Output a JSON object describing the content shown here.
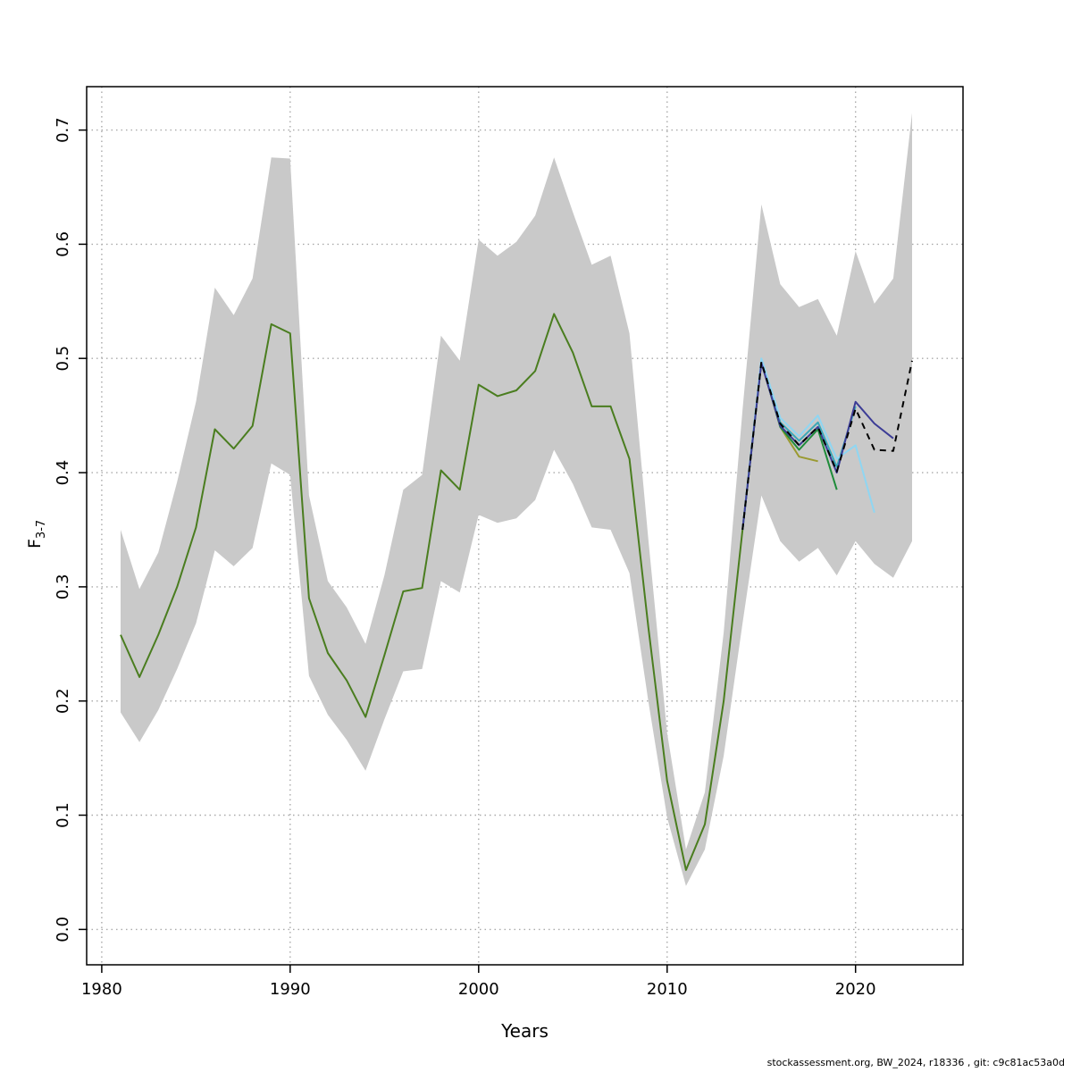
{
  "footer": {
    "text": "stockassessment.org, BW_2024, r18336 , git: c9c81ac53a0d"
  },
  "chart_data": {
    "type": "line",
    "title": "",
    "xlabel": "Years",
    "ylabel": {
      "main": "F",
      "sub": "3-7"
    },
    "grid": "dotted",
    "legend": "none",
    "xlim": [
      1979.2,
      2025.7
    ],
    "ylim": [
      -0.031,
      0.738
    ],
    "x_ticks": [
      1980,
      1990,
      2000,
      2010,
      2020
    ],
    "y_ticks": [
      "0.0",
      "0.1",
      "0.2",
      "0.3",
      "0.4",
      "0.5",
      "0.6",
      "0.7"
    ],
    "band": {
      "name": "confidence-band",
      "color": "#c9c9c9",
      "years": [
        1981,
        1982,
        1983,
        1984,
        1985,
        1986,
        1987,
        1988,
        1989,
        1990,
        1991,
        1992,
        1993,
        1994,
        1995,
        1996,
        1997,
        1998,
        1999,
        2000,
        2001,
        2002,
        2003,
        2004,
        2005,
        2006,
        2007,
        2008,
        2009,
        2010,
        2011,
        2012,
        2013,
        2014,
        2015,
        2016,
        2017,
        2018,
        2019,
        2020,
        2021,
        2022,
        2023
      ],
      "lower": [
        0.19,
        0.164,
        0.192,
        0.228,
        0.268,
        0.332,
        0.318,
        0.334,
        0.408,
        0.398,
        0.222,
        0.188,
        0.166,
        0.139,
        0.184,
        0.226,
        0.228,
        0.305,
        0.295,
        0.363,
        0.356,
        0.36,
        0.376,
        0.42,
        0.39,
        0.352,
        0.35,
        0.312,
        0.2,
        0.098,
        0.038,
        0.07,
        0.152,
        0.268,
        0.38,
        0.34,
        0.322,
        0.334,
        0.31,
        0.34,
        0.32,
        0.308,
        0.34
      ],
      "upper": [
        0.35,
        0.298,
        0.33,
        0.392,
        0.462,
        0.562,
        0.538,
        0.57,
        0.676,
        0.675,
        0.38,
        0.305,
        0.282,
        0.25,
        0.31,
        0.385,
        0.398,
        0.52,
        0.498,
        0.604,
        0.59,
        0.602,
        0.625,
        0.676,
        0.628,
        0.582,
        0.59,
        0.522,
        0.342,
        0.172,
        0.07,
        0.12,
        0.26,
        0.455,
        0.635,
        0.565,
        0.545,
        0.552,
        0.52,
        0.594,
        0.548,
        0.57,
        0.715
      ]
    },
    "base_series": {
      "name": "common-history",
      "color": "#4a7d1f",
      "dash": null,
      "years": [
        1981,
        1982,
        1983,
        1984,
        1985,
        1986,
        1987,
        1988,
        1989,
        1990,
        1991,
        1992,
        1993,
        1994,
        1995,
        1996,
        1997,
        1998,
        1999,
        2000,
        2001,
        2002,
        2003,
        2004,
        2005,
        2006,
        2007,
        2008,
        2009,
        2010,
        2011,
        2012,
        2013,
        2014,
        2015
      ],
      "values": [
        0.258,
        0.221,
        0.258,
        0.3,
        0.352,
        0.438,
        0.421,
        0.441,
        0.53,
        0.522,
        0.29,
        0.242,
        0.218,
        0.186,
        0.24,
        0.296,
        0.299,
        0.402,
        0.385,
        0.477,
        0.467,
        0.472,
        0.489,
        0.539,
        0.505,
        0.458,
        0.458,
        0.412,
        0.265,
        0.13,
        0.052,
        0.092,
        0.2,
        0.35,
        0.497
      ],
      "line_width": 2
    },
    "series": [
      {
        "name": "retro-peel-2018",
        "color": "#9a9a30",
        "dash": null,
        "years": [
          2014,
          2015,
          2016,
          2017,
          2018
        ],
        "values": [
          0.35,
          0.497,
          0.44,
          0.414,
          0.41
        ],
        "line_width": 2
      },
      {
        "name": "retro-peel-2019",
        "color": "#1e8c3a",
        "dash": null,
        "years": [
          2014,
          2015,
          2016,
          2017,
          2018,
          2019
        ],
        "values": [
          0.35,
          0.497,
          0.44,
          0.42,
          0.438,
          0.385
        ],
        "line_width": 2
      },
      {
        "name": "retro-peel-2020",
        "color": "#3aa7b8",
        "dash": null,
        "years": [
          2014,
          2015,
          2016,
          2017,
          2018,
          2019,
          2020
        ],
        "values": [
          0.35,
          0.498,
          0.444,
          0.428,
          0.444,
          0.405,
          0.458
        ],
        "line_width": 2
      },
      {
        "name": "retro-peel-2021",
        "color": "#8fd6f2",
        "dash": null,
        "years": [
          2014,
          2015,
          2016,
          2017,
          2018,
          2019,
          2020,
          2021
        ],
        "values": [
          0.35,
          0.5,
          0.448,
          0.432,
          0.45,
          0.412,
          0.424,
          0.365
        ],
        "line_width": 2
      },
      {
        "name": "retro-peel-2022",
        "color": "#3c3c96",
        "dash": null,
        "years": [
          2014,
          2015,
          2016,
          2017,
          2018,
          2019,
          2020,
          2021,
          2022
        ],
        "values": [
          0.35,
          0.496,
          0.441,
          0.424,
          0.44,
          0.4,
          0.462,
          0.443,
          0.43
        ],
        "line_width": 2
      },
      {
        "name": "final-run-2023",
        "color": "#000000",
        "dash": "7 6",
        "years": [
          2014,
          2015,
          2016,
          2017,
          2018,
          2019,
          2020,
          2021,
          2022,
          2023
        ],
        "values": [
          0.35,
          0.497,
          0.443,
          0.424,
          0.44,
          0.401,
          0.456,
          0.42,
          0.419,
          0.498
        ],
        "line_width": 2
      }
    ]
  }
}
